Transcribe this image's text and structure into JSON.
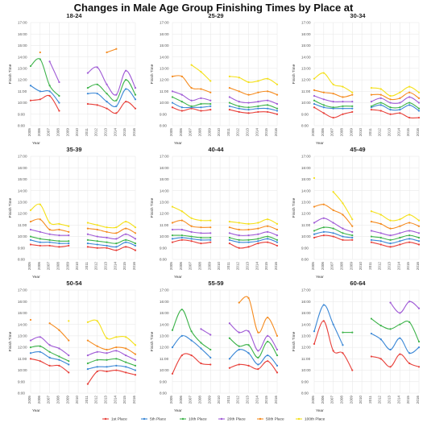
{
  "chart_data": {
    "title": "Changes in Male Age Group Finishing Times by Place at",
    "type": "line",
    "ylabel": "Finish Time",
    "xlabel": "Year",
    "y_ticks": [
      "8:00",
      "9:00",
      "10:00",
      "11:00",
      "12:00",
      "13:00",
      "14:00",
      "15:00",
      "16:00",
      "17:00"
    ],
    "ylim": [
      8,
      17
    ],
    "years": [
      2005,
      2006,
      2007,
      2008,
      2009,
      2010,
      2011,
      2012,
      2013,
      2014,
      2015,
      2016
    ],
    "colors": {
      "1st Place": "#e8403a",
      "5th Place": "#3a87d6",
      "10th Place": "#3db34a",
      "20th Place": "#a05bd6",
      "50th Place": "#f58b1f",
      "100th Place": "#f4e01a"
    },
    "legend_position": "bottom",
    "legend": [
      "1st Place",
      "5th Place",
      "10th Place",
      "20th Place",
      "50th Place",
      "100th Place"
    ],
    "panels": [
      {
        "title": "18-24",
        "series": [
          {
            "name": "1st Place",
            "values": [
              10.2,
              10.3,
              10.6,
              9.3,
              null,
              null,
              9.9,
              9.8,
              9.5,
              9.1,
              10.1,
              9.5
            ]
          },
          {
            "name": "5th Place",
            "values": [
              11.5,
              11.0,
              11.0,
              10.0,
              null,
              null,
              10.8,
              10.8,
              10.1,
              9.7,
              11.2,
              10.3
            ]
          },
          {
            "name": "10th Place",
            "values": [
              13.2,
              13.8,
              11.5,
              10.6,
              null,
              null,
              11.3,
              11.6,
              10.8,
              10.2,
              12.0,
              10.7
            ]
          },
          {
            "name": "20th Place",
            "values": [
              null,
              null,
              13.6,
              11.8,
              null,
              null,
              12.6,
              13.1,
              11.6,
              10.7,
              12.8,
              11.3
            ]
          },
          {
            "name": "50th Place",
            "values": [
              null,
              14.4,
              null,
              null,
              null,
              null,
              null,
              null,
              14.4,
              14.7,
              null,
              null
            ]
          },
          {
            "name": "100th Place",
            "values": [
              null,
              null,
              null,
              null,
              null,
              null,
              null,
              null,
              null,
              null,
              null,
              null
            ]
          }
        ]
      },
      {
        "title": "25-29",
        "series": [
          {
            "name": "1st Place",
            "values": [
              9.6,
              9.3,
              9.5,
              9.3,
              9.4,
              null,
              9.4,
              9.2,
              9.1,
              9.2,
              9.2,
              9.0
            ]
          },
          {
            "name": "5th Place",
            "values": [
              10.0,
              9.6,
              9.6,
              9.6,
              9.7,
              null,
              9.7,
              9.5,
              9.4,
              9.5,
              9.5,
              9.3
            ]
          },
          {
            "name": "10th Place",
            "values": [
              10.5,
              10.1,
              9.7,
              9.9,
              9.9,
              null,
              10.0,
              9.7,
              9.6,
              9.7,
              9.8,
              9.5
            ]
          },
          {
            "name": "20th Place",
            "values": [
              11.0,
              10.7,
              10.2,
              10.4,
              10.2,
              null,
              10.5,
              10.1,
              10.0,
              10.1,
              10.2,
              9.9
            ]
          },
          {
            "name": "50th Place",
            "values": [
              12.3,
              12.3,
              11.3,
              11.2,
              10.9,
              null,
              11.3,
              11.0,
              10.7,
              10.9,
              11.0,
              10.7
            ]
          },
          {
            "name": "100th Place",
            "values": [
              null,
              null,
              13.3,
              12.7,
              11.9,
              null,
              12.3,
              12.2,
              11.8,
              11.9,
              12.1,
              11.6
            ]
          }
        ]
      },
      {
        "title": "30-34",
        "series": [
          {
            "name": "1st Place",
            "values": [
              9.6,
              9.1,
              8.7,
              9.0,
              9.2,
              null,
              9.4,
              9.3,
              9.0,
              9.1,
              8.7,
              8.7
            ]
          },
          {
            "name": "5th Place",
            "values": [
              9.9,
              9.6,
              9.5,
              9.5,
              9.5,
              null,
              9.6,
              9.8,
              9.4,
              9.4,
              9.8,
              9.3
            ]
          },
          {
            "name": "10th Place",
            "values": [
              10.2,
              9.8,
              9.6,
              9.7,
              9.7,
              null,
              9.7,
              10.0,
              9.6,
              9.6,
              10.0,
              9.5
            ]
          },
          {
            "name": "20th Place",
            "values": [
              10.6,
              10.3,
              10.1,
              10.1,
              10.1,
              null,
              10.1,
              10.4,
              10.0,
              10.0,
              10.5,
              10.0
            ]
          },
          {
            "name": "50th Place",
            "values": [
              11.1,
              10.9,
              10.8,
              10.5,
              10.7,
              null,
              10.7,
              10.7,
              10.3,
              10.4,
              10.9,
              10.4
            ]
          },
          {
            "name": "100th Place",
            "values": [
              12.1,
              12.6,
              11.6,
              11.4,
              10.9,
              null,
              11.3,
              11.2,
              10.6,
              10.9,
              11.4,
              10.9
            ]
          }
        ]
      },
      {
        "title": "35-39",
        "series": [
          {
            "name": "1st Place",
            "values": [
              9.3,
              9.2,
              9.2,
              9.1,
              9.2,
              null,
              9.1,
              9.0,
              9.0,
              8.8,
              9.1,
              8.8
            ]
          },
          {
            "name": "5th Place",
            "values": [
              9.7,
              9.5,
              9.5,
              9.4,
              9.4,
              null,
              9.4,
              9.3,
              9.2,
              9.1,
              9.5,
              9.2
            ]
          },
          {
            "name": "10th Place",
            "values": [
              10.0,
              9.8,
              9.7,
              9.6,
              9.6,
              null,
              9.7,
              9.6,
              9.5,
              9.4,
              9.7,
              9.4
            ]
          },
          {
            "name": "20th Place",
            "values": [
              10.6,
              10.4,
              10.2,
              10.1,
              10.1,
              null,
              10.2,
              10.0,
              9.9,
              9.8,
              10.2,
              9.8
            ]
          },
          {
            "name": "50th Place",
            "values": [
              11.3,
              11.5,
              10.6,
              10.6,
              10.4,
              null,
              10.7,
              10.6,
              10.4,
              10.3,
              10.7,
              10.3
            ]
          },
          {
            "name": "100th Place",
            "values": [
              12.3,
              12.8,
              11.2,
              11.1,
              10.9,
              null,
              11.2,
              11.0,
              10.8,
              10.8,
              11.3,
              10.8
            ]
          }
        ]
      },
      {
        "title": "40-44",
        "series": [
          {
            "name": "1st Place",
            "values": [
              9.5,
              9.7,
              9.6,
              9.4,
              9.5,
              null,
              9.4,
              9.0,
              9.1,
              9.4,
              9.5,
              9.2
            ]
          },
          {
            "name": "5th Place",
            "values": [
              9.8,
              9.9,
              9.8,
              9.7,
              9.7,
              null,
              9.7,
              9.5,
              9.5,
              9.6,
              9.8,
              9.5
            ]
          },
          {
            "name": "10th Place",
            "values": [
              10.1,
              10.1,
              10.0,
              9.9,
              9.9,
              null,
              9.9,
              9.7,
              9.7,
              9.8,
              10.0,
              9.7
            ]
          },
          {
            "name": "20th Place",
            "values": [
              10.6,
              10.6,
              10.4,
              10.3,
              10.3,
              null,
              10.3,
              10.1,
              10.1,
              10.2,
              10.4,
              10.1
            ]
          },
          {
            "name": "50th Place",
            "values": [
              11.2,
              11.4,
              10.9,
              10.8,
              10.8,
              null,
              10.8,
              10.6,
              10.6,
              10.7,
              10.9,
              10.6
            ]
          },
          {
            "name": "100th Place",
            "values": [
              12.6,
              12.2,
              11.6,
              11.4,
              11.4,
              null,
              11.3,
              11.2,
              11.1,
              11.2,
              11.5,
              11.1
            ]
          }
        ]
      },
      {
        "title": "45-49",
        "series": [
          {
            "name": "1st Place",
            "values": [
              9.9,
              10.1,
              10.0,
              9.7,
              9.7,
              null,
              9.5,
              9.3,
              9.1,
              9.3,
              9.5,
              9.3
            ]
          },
          {
            "name": "5th Place",
            "values": [
              10.2,
              10.4,
              10.3,
              10.0,
              9.9,
              null,
              9.7,
              9.6,
              9.4,
              9.6,
              9.8,
              9.6
            ]
          },
          {
            "name": "10th Place",
            "values": [
              10.5,
              10.8,
              10.7,
              10.3,
              10.1,
              null,
              10.0,
              9.9,
              9.7,
              9.9,
              10.1,
              9.9
            ]
          },
          {
            "name": "20th Place",
            "values": [
              11.2,
              11.6,
              11.2,
              10.7,
              10.4,
              null,
              10.5,
              10.3,
              10.1,
              10.3,
              10.5,
              10.3
            ]
          },
          {
            "name": "50th Place",
            "values": [
              12.6,
              12.8,
              12.3,
              11.9,
              10.9,
              null,
              11.3,
              11.1,
              10.7,
              10.9,
              11.2,
              10.9
            ]
          },
          {
            "name": "100th Place",
            "values": [
              15.1,
              null,
              13.9,
              12.9,
              11.5,
              null,
              12.2,
              11.9,
              11.4,
              11.5,
              11.9,
              11.4
            ]
          }
        ]
      },
      {
        "title": "50-54",
        "series": [
          {
            "name": "1st Place",
            "values": [
              11.0,
              10.8,
              10.4,
              10.4,
              9.8,
              null,
              8.8,
              9.9,
              9.9,
              10.0,
              9.8,
              9.6
            ]
          },
          {
            "name": "5th Place",
            "values": [
              11.5,
              11.6,
              11.1,
              10.9,
              10.5,
              null,
              10.1,
              10.3,
              10.3,
              10.4,
              10.3,
              10.0
            ]
          },
          {
            "name": "10th Place",
            "values": [
              12.0,
              12.1,
              11.6,
              11.2,
              10.8,
              null,
              10.6,
              10.9,
              10.9,
              11.0,
              10.7,
              10.4
            ]
          },
          {
            "name": "20th Place",
            "values": [
              12.6,
              12.9,
              12.2,
              11.9,
              11.3,
              null,
              11.3,
              11.6,
              11.5,
              11.7,
              11.3,
              10.9
            ]
          },
          {
            "name": "50th Place",
            "values": [
              14.4,
              null,
              14.1,
              13.5,
              12.6,
              null,
              12.6,
              12.1,
              11.8,
              12.0,
              11.9,
              11.4
            ]
          },
          {
            "name": "100th Place",
            "values": [
              null,
              null,
              null,
              null,
              14.3,
              null,
              14.2,
              14.3,
              12.8,
              12.9,
              12.9,
              12.2
            ]
          }
        ]
      },
      {
        "title": "55-59",
        "series": [
          {
            "name": "1st Place",
            "values": [
              9.7,
              11.3,
              11.3,
              10.6,
              10.5,
              null,
              10.2,
              10.5,
              10.4,
              10.1,
              10.8,
              9.8
            ]
          },
          {
            "name": "5th Place",
            "values": [
              12.0,
              13.0,
              12.6,
              11.9,
              11.1,
              null,
              11.0,
              11.8,
              11.5,
              10.5,
              11.3,
              10.4
            ]
          },
          {
            "name": "10th Place",
            "values": [
              13.5,
              15.3,
              13.4,
              12.4,
              11.8,
              null,
              12.8,
              12.1,
              12.2,
              11.1,
              12.5,
              11.3
            ]
          },
          {
            "name": "20th Place",
            "values": [
              null,
              null,
              null,
              13.6,
              13.1,
              null,
              14.1,
              13.3,
              13.4,
              11.7,
              13.0,
              11.8
            ]
          },
          {
            "name": "50th Place",
            "values": [
              null,
              null,
              null,
              null,
              null,
              null,
              null,
              15.9,
              16.3,
              13.3,
              14.6,
              13.0
            ]
          },
          {
            "name": "100th Place",
            "values": [
              null,
              null,
              null,
              null,
              null,
              null,
              null,
              null,
              null,
              null,
              null,
              null
            ]
          }
        ]
      },
      {
        "title": "60-64",
        "series": [
          {
            "name": "1st Place",
            "values": [
              12.3,
              14.3,
              11.7,
              11.5,
              10.0,
              null,
              11.2,
              11.0,
              10.3,
              11.4,
              10.6,
              10.3
            ]
          },
          {
            "name": "5th Place",
            "values": [
              13.4,
              15.7,
              14.0,
              12.2,
              null,
              null,
              13.2,
              12.7,
              11.8,
              12.8,
              11.5,
              12.0
            ]
          },
          {
            "name": "10th Place",
            "values": [
              null,
              null,
              null,
              13.3,
              13.3,
              null,
              14.5,
              13.9,
              13.6,
              14.0,
              14.2,
              12.5
            ]
          },
          {
            "name": "20th Place",
            "values": [
              null,
              null,
              null,
              null,
              null,
              null,
              null,
              null,
              15.9,
              15.0,
              16.0,
              15.4
            ]
          },
          {
            "name": "50th Place",
            "values": [
              null,
              null,
              null,
              null,
              null,
              null,
              null,
              null,
              null,
              null,
              null,
              null
            ]
          },
          {
            "name": "100th Place",
            "values": [
              null,
              null,
              null,
              null,
              null,
              null,
              null,
              null,
              null,
              null,
              null,
              null
            ]
          }
        ]
      }
    ]
  }
}
